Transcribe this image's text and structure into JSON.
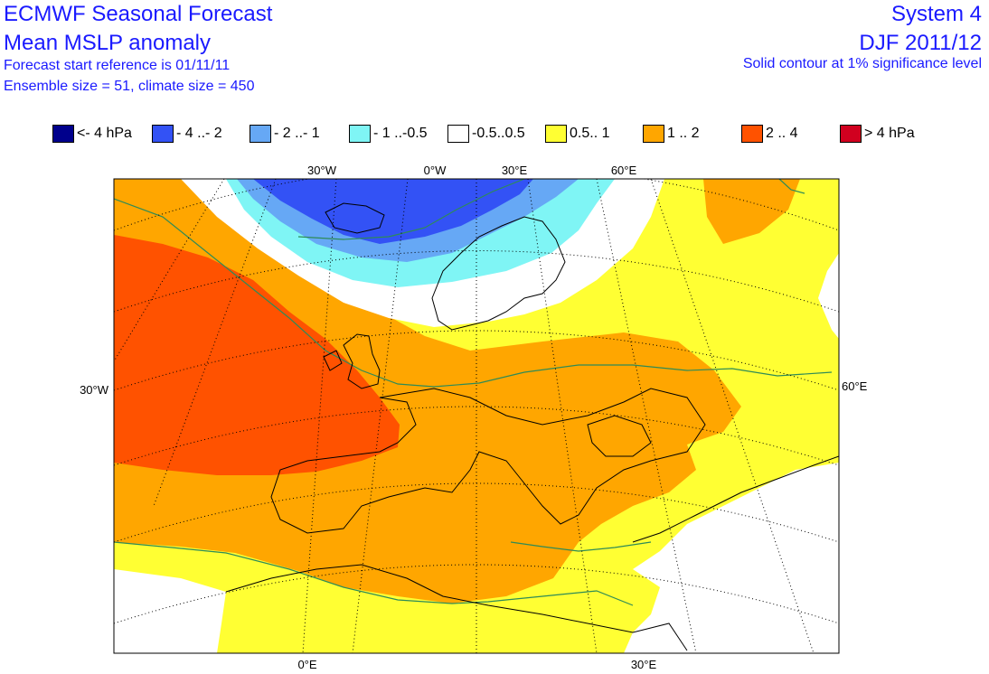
{
  "header": {
    "title_line1": "ECMWF Seasonal Forecast",
    "title_line2": "Mean MSLP anomaly",
    "forecast_start": "Forecast start reference is 01/11/11",
    "ensemble": "Ensemble size = 51, climate size = 450",
    "system": "System 4",
    "season": "DJF 2011/12",
    "significance_note": "Solid contour at 1% significance level"
  },
  "legend": [
    {
      "label": "<- 4 hPa",
      "color": "#00008c"
    },
    {
      "label": "- 4 ..- 2",
      "color": "#3352f5"
    },
    {
      "label": "- 2 ..- 1",
      "color": "#66a8f5"
    },
    {
      "label": "- 1 ..-0.5",
      "color": "#7ff5f5"
    },
    {
      "label": "-0.5..0.5",
      "color": "#ffffff"
    },
    {
      "label": "0.5.. 1",
      "color": "#ffff33"
    },
    {
      "label": "1 .. 2",
      "color": "#ffa600"
    },
    {
      "label": "2 .. 4",
      "color": "#ff5200"
    },
    {
      "label": "> 4 hPa",
      "color": "#d1001f"
    }
  ],
  "map": {
    "top_labels": [
      "30°W",
      "0°W",
      "30°E",
      "60°E"
    ],
    "left_label": "30°W",
    "right_label": "60°E",
    "bottom_labels": [
      "0°E",
      "30°E"
    ],
    "contour_color": "#2e8b57",
    "coast_color": "#000000",
    "grid_color": "#000000"
  }
}
